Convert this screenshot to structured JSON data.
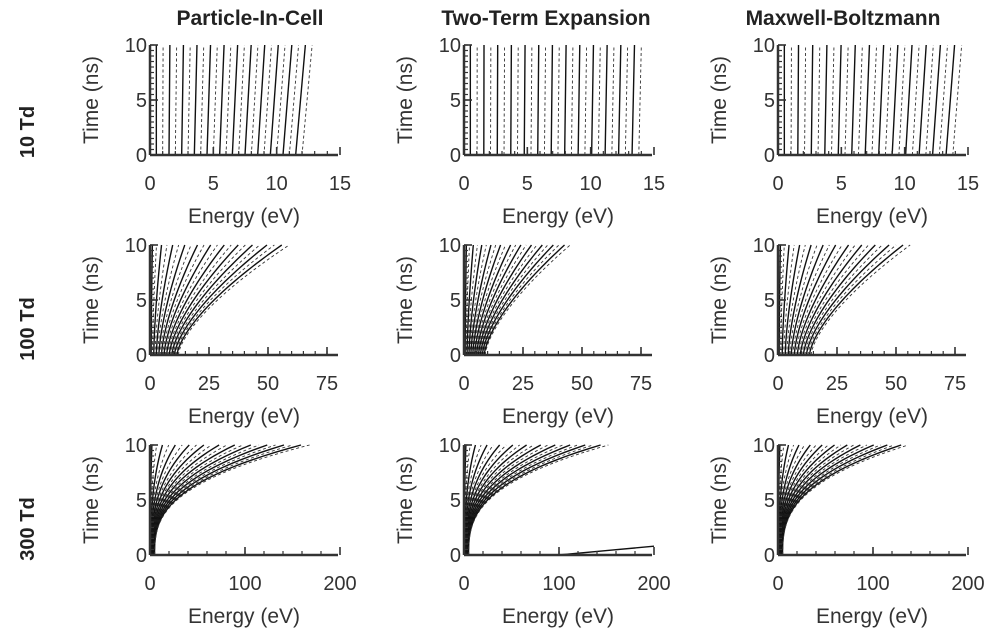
{
  "figure": {
    "column_titles": [
      "Particle-In-Cell",
      "Two-Term Expansion",
      "Maxwell-Boltzmann"
    ],
    "row_labels": [
      "10 Td",
      "100 Td",
      "300 Td"
    ]
  },
  "chart_data": [
    {
      "type": "line",
      "row": 0,
      "col": 0,
      "xlabel": "Energy (eV)",
      "ylabel": "Time (ns)",
      "xlim": [
        0,
        15
      ],
      "ylim": [
        0,
        10
      ],
      "xticks": [
        0,
        5,
        10,
        15
      ],
      "yticks": [
        0,
        5,
        10
      ],
      "contours": {
        "count": 24,
        "start_energy": [
          0.5,
          12.0
        ],
        "end_energy": [
          0.5,
          12.8
        ],
        "growth": "linear",
        "curvature": 1.0
      }
    },
    {
      "type": "line",
      "row": 0,
      "col": 1,
      "xlabel": "Energy (eV)",
      "ylabel": "Time (ns)",
      "xlim": [
        0,
        15
      ],
      "ylim": [
        0,
        10
      ],
      "xticks": [
        0,
        5,
        10,
        15
      ],
      "yticks": [
        0,
        5,
        10
      ],
      "contours": {
        "count": 26,
        "start_energy": [
          0.5,
          13.8
        ],
        "end_energy": [
          0.5,
          14.0
        ],
        "growth": "linear",
        "curvature": 1.0
      }
    },
    {
      "type": "line",
      "row": 0,
      "col": 2,
      "xlabel": "Energy (eV)",
      "ylabel": "Time (ns)",
      "xlim": [
        0,
        15
      ],
      "ylim": [
        0,
        10
      ],
      "xticks": [
        0,
        5,
        10,
        15
      ],
      "yticks": [
        0,
        5,
        10
      ],
      "contours": {
        "count": 26,
        "start_energy": [
          0.5,
          13.8
        ],
        "end_energy": [
          0.5,
          14.5
        ],
        "growth": "linear",
        "curvature": 1.0
      }
    },
    {
      "type": "line",
      "row": 1,
      "col": 0,
      "xlabel": "Energy (eV)",
      "ylabel": "Time (ns)",
      "xlim": [
        0,
        80
      ],
      "ylim": [
        0,
        10
      ],
      "xticks": [
        0,
        25,
        50,
        75
      ],
      "yticks": [
        0,
        5,
        10
      ],
      "contours": {
        "count": 22,
        "start_energy": [
          0.5,
          12.0
        ],
        "end_energy": [
          1.0,
          59.0
        ],
        "growth": "power",
        "curvature": 1.5
      }
    },
    {
      "type": "line",
      "row": 1,
      "col": 1,
      "xlabel": "Energy (eV)",
      "ylabel": "Time (ns)",
      "xlim": [
        0,
        80
      ],
      "ylim": [
        0,
        10
      ],
      "xticks": [
        0,
        25,
        50,
        75
      ],
      "yticks": [
        0,
        5,
        10
      ],
      "contours": {
        "count": 22,
        "start_energy": [
          0.5,
          9.0
        ],
        "end_energy": [
          1.0,
          45.0
        ],
        "growth": "power",
        "curvature": 1.5
      }
    },
    {
      "type": "line",
      "row": 1,
      "col": 2,
      "xlabel": "Energy (eV)",
      "ylabel": "Time (ns)",
      "xlim": [
        0,
        80
      ],
      "ylim": [
        0,
        10
      ],
      "xticks": [
        0,
        25,
        50,
        75
      ],
      "yticks": [
        0,
        5,
        10
      ],
      "contours": {
        "count": 22,
        "start_energy": [
          0.5,
          14.0
        ],
        "end_energy": [
          1.0,
          56.0
        ],
        "growth": "power",
        "curvature": 1.5
      }
    },
    {
      "type": "line",
      "row": 2,
      "col": 0,
      "xlabel": "Energy (eV)",
      "ylabel": "Time (ns)",
      "xlim": [
        0,
        200
      ],
      "ylim": [
        0,
        10
      ],
      "xticks": [
        0,
        100,
        200
      ],
      "yticks": [
        0,
        5,
        10
      ],
      "contours": {
        "count": 22,
        "start_energy": [
          0.5,
          5.0
        ],
        "end_energy": [
          2.0,
          168.0
        ],
        "growth": "power",
        "curvature": 2.8
      }
    },
    {
      "type": "line",
      "row": 2,
      "col": 1,
      "xlabel": "Energy (eV)",
      "ylabel": "Time (ns)",
      "xlim": [
        0,
        200
      ],
      "ylim": [
        0,
        10
      ],
      "xticks": [
        0,
        100,
        200
      ],
      "yticks": [
        0,
        5,
        10
      ],
      "contours": {
        "count": 22,
        "start_energy": [
          0.5,
          5.0
        ],
        "end_energy": [
          2.0,
          152.0
        ],
        "growth": "power",
        "curvature": 2.8
      },
      "extra_curve": {
        "x": [
          100,
          150,
          200
        ],
        "y": [
          0.0,
          0.4,
          0.8
        ]
      }
    },
    {
      "type": "line",
      "row": 2,
      "col": 2,
      "xlabel": "Energy (eV)",
      "ylabel": "Time (ns)",
      "xlim": [
        0,
        200
      ],
      "ylim": [
        0,
        10
      ],
      "xticks": [
        0,
        100,
        200
      ],
      "yticks": [
        0,
        5,
        10
      ],
      "contours": {
        "count": 22,
        "start_energy": [
          0.5,
          5.0
        ],
        "end_energy": [
          2.0,
          137.0
        ],
        "growth": "power",
        "curvature": 2.8
      }
    }
  ]
}
